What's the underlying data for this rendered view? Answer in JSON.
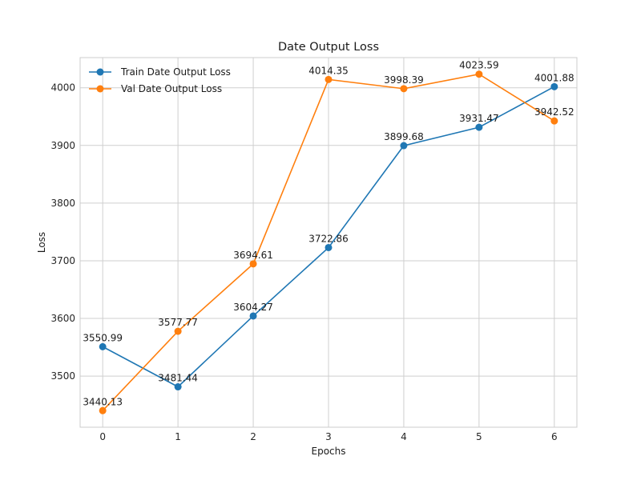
{
  "chart_data": {
    "type": "line",
    "title": "Date Output Loss",
    "xlabel": "Epochs",
    "ylabel": "Loss",
    "x": [
      0,
      1,
      2,
      3,
      4,
      5,
      6
    ],
    "xlim": [
      -0.3,
      6.3
    ],
    "ylim": [
      3411.4,
      4052.3
    ],
    "yticks": [
      3500,
      3600,
      3700,
      3800,
      3900,
      4000
    ],
    "grid": true,
    "legend_position": "top-left",
    "series": [
      {
        "name": "Train Date Output Loss",
        "color": "#1f77b4",
        "values": [
          3550.99,
          3481.44,
          3604.27,
          3722.86,
          3899.68,
          3931.47,
          4001.88
        ],
        "labels": [
          "3550.99",
          "3481.44",
          "3604.27",
          "3722.86",
          "3899.68",
          "3931.47",
          "4001.88"
        ]
      },
      {
        "name": "Val Date Output Loss",
        "color": "#ff7f0e",
        "values": [
          3440.13,
          3577.77,
          3694.61,
          4014.35,
          3998.39,
          4023.59,
          3942.52
        ],
        "labels": [
          "3440.13",
          "3577.77",
          "3694.61",
          "4014.35",
          "3998.39",
          "4023.59",
          "3942.52"
        ]
      }
    ]
  }
}
